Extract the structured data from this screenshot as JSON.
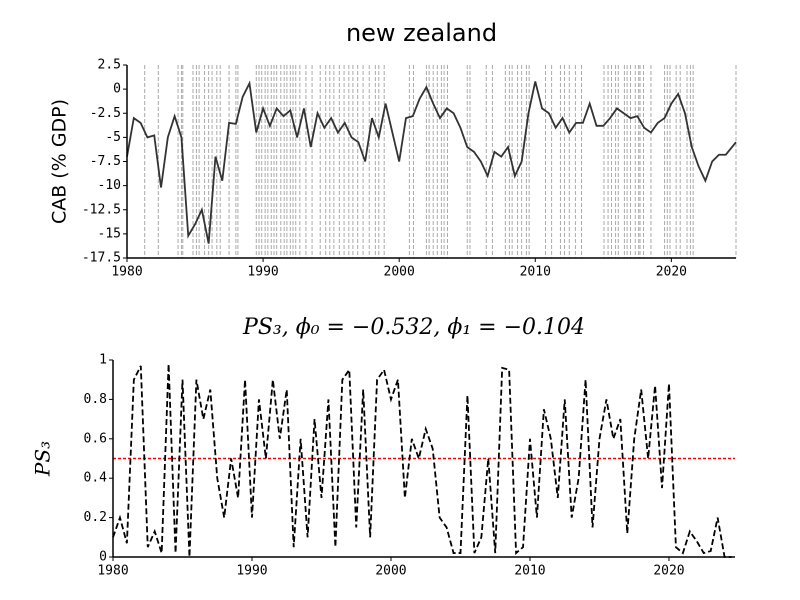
{
  "chart_data": [
    {
      "type": "line",
      "title": "new zealand",
      "ylabel": "CAB (% GDP)",
      "xlim": [
        1980,
        2024.75
      ],
      "ylim": [
        -17.5,
        2.5
      ],
      "xticks": [
        1980,
        1990,
        2000,
        2010,
        2020
      ],
      "yticks": [
        2.5,
        0,
        -2.5,
        -5,
        -7.5,
        -10,
        -12.5,
        -15,
        -17.5
      ],
      "vlines": [
        1981.3,
        1982.3,
        1983.75,
        1984.0,
        1984.1,
        1984.85,
        1985.1,
        1985.3,
        1985.7,
        1986.0,
        1986.25,
        1986.6,
        1986.85,
        1987.5,
        1988.0,
        1988.15,
        1989.5,
        1989.7,
        1989.9,
        1990.15,
        1990.35,
        1990.6,
        1990.8,
        1991.0,
        1991.3,
        1991.55,
        1991.75,
        1992.0,
        1992.2,
        1992.4,
        1992.7,
        1993.15,
        1993.6,
        1994.2,
        1994.6,
        1994.9,
        1995.2,
        1995.6,
        1995.95,
        1996.3,
        1996.6,
        1996.95,
        1997.35,
        1997.8,
        1998.25,
        1998.5,
        1998.9,
        2000.75,
        2001.05,
        2002.0,
        2002.2,
        2002.5,
        2002.8,
        2003.1,
        2003.3,
        2003.55,
        2005.0,
        2005.2,
        2006.4,
        2006.85,
        2007.8,
        2008.1,
        2008.3,
        2008.7,
        2009.0,
        2009.35,
        2009.55,
        2010.75,
        2011.2,
        2011.85,
        2012.15,
        2012.5,
        2012.95,
        2013.4,
        2015.05,
        2015.35,
        2015.6,
        2015.9,
        2016.1,
        2016.55,
        2016.75,
        2017.0,
        2017.35,
        2017.6,
        2017.7,
        2017.95,
        2018.5,
        2019.5,
        2019.7,
        2019.9,
        2020.35,
        2020.65,
        2021.15,
        2021.4,
        2021.6,
        2024.75
      ],
      "vline_color": "#aaaaaa",
      "series": [
        {
          "color": "#333333",
          "line_style": "solid",
          "x": [
            1980,
            1980.5,
            1981,
            1981.5,
            1982,
            1982.5,
            1983,
            1983.5,
            1984,
            1984.5,
            1985,
            1985.5,
            1986,
            1986.5,
            1987,
            1987.5,
            1988,
            1988.5,
            1989,
            1989.5,
            1990,
            1990.5,
            1991,
            1991.5,
            1992,
            1992.5,
            1993,
            1993.5,
            1994,
            1994.5,
            1995,
            1995.5,
            1996,
            1996.5,
            1997,
            1997.5,
            1998,
            1998.5,
            1999,
            1999.5,
            2000,
            2000.5,
            2001,
            2001.5,
            2002,
            2002.5,
            2003,
            2003.5,
            2004,
            2004.5,
            2005,
            2005.5,
            2006,
            2006.5,
            2007,
            2007.5,
            2008,
            2008.5,
            2009,
            2009.5,
            2010,
            2010.5,
            2011,
            2011.5,
            2012,
            2012.5,
            2013,
            2013.5,
            2014,
            2014.5,
            2015,
            2015.5,
            2016,
            2016.5,
            2017,
            2017.5,
            2018,
            2018.5,
            2019,
            2019.5,
            2020,
            2020.5,
            2021,
            2021.5,
            2022,
            2022.5,
            2023,
            2023.5,
            2024,
            2024.75
          ],
          "values": [
            -7,
            -3,
            -3.5,
            -5,
            -4.8,
            -10.2,
            -5,
            -2.8,
            -5,
            -15.2,
            -14,
            -12.5,
            -16,
            -7,
            -9.5,
            -3.5,
            -3.6,
            -0.8,
            0.6,
            -4.5,
            -2,
            -3.8,
            -2,
            -2.8,
            -2.2,
            -5,
            -2,
            -6,
            -2.5,
            -4,
            -3,
            -4.5,
            -3.5,
            -5,
            -5.5,
            -7.5,
            -3,
            -5,
            -1.5,
            -4.5,
            -7.5,
            -3,
            -2.8,
            -1,
            0.2,
            -1.5,
            -3,
            -2,
            -2.5,
            -4,
            -6,
            -6.5,
            -7.5,
            -9,
            -6.5,
            -7,
            -6,
            -9,
            -7.5,
            -2.5,
            0.8,
            -2,
            -2.5,
            -4,
            -3,
            -4.5,
            -3.5,
            -3.5,
            -1.5,
            -3.8,
            -3.8,
            -3,
            -2,
            -2.5,
            -3,
            -2.8,
            -4,
            -4.5,
            -3.5,
            -3,
            -1.5,
            -0.5,
            -2.5,
            -6,
            -8,
            -9.5,
            -7.5,
            -6.8,
            -6.8,
            -5.5
          ]
        }
      ]
    },
    {
      "type": "line",
      "title": "PS₃, ϕ₀ = −0.532, ϕ₁ = −0.104",
      "ylabel": "PS₃",
      "xlim": [
        1980,
        2024.75
      ],
      "ylim": [
        0,
        1
      ],
      "xticks": [
        1980,
        1990,
        2000,
        2010,
        2020
      ],
      "yticks": [
        0,
        0.2,
        0.4,
        0.6,
        0.8,
        1
      ],
      "hline": {
        "value": 0.5,
        "color": "#ff0000"
      },
      "series": [
        {
          "color": "#000000",
          "line_style": "dashed",
          "x": [
            1980,
            1980.5,
            1981,
            1981.5,
            1982,
            1982.5,
            1983,
            1983.5,
            1984,
            1984.5,
            1985,
            1985.5,
            1986,
            1986.5,
            1987,
            1987.5,
            1988,
            1988.5,
            1989,
            1989.5,
            1990,
            1990.5,
            1991,
            1991.5,
            1992,
            1992.5,
            1993,
            1993.5,
            1994,
            1994.5,
            1995,
            1995.5,
            1996,
            1996.5,
            1997,
            1997.5,
            1998,
            1998.5,
            1999,
            1999.5,
            2000,
            2000.5,
            2001,
            2001.5,
            2002,
            2002.5,
            2003,
            2003.5,
            2004,
            2004.5,
            2005,
            2005.5,
            2006,
            2006.5,
            2007,
            2007.5,
            2008,
            2008.5,
            2009,
            2009.5,
            2010,
            2010.5,
            2011,
            2011.5,
            2012,
            2012.5,
            2013,
            2013.5,
            2014,
            2014.5,
            2015,
            2015.5,
            2016,
            2016.5,
            2017,
            2017.5,
            2018,
            2018.5,
            2019,
            2019.5,
            2020,
            2020.5,
            2021,
            2021.5,
            2022,
            2022.5,
            2023,
            2023.5,
            2024,
            2024.5
          ],
          "values": [
            0.1,
            0.2,
            0.07,
            0.9,
            0.97,
            0.05,
            0.13,
            0.02,
            0.98,
            0.02,
            0.9,
            0,
            0.9,
            0.7,
            0.85,
            0.4,
            0.2,
            0.5,
            0.3,
            0.9,
            0.2,
            0.8,
            0.5,
            0.9,
            0.6,
            0.85,
            0.05,
            0.6,
            0.1,
            0.7,
            0.3,
            0.8,
            0.05,
            0.9,
            0.95,
            0.15,
            0.85,
            0.1,
            0.9,
            0.95,
            0.8,
            0.9,
            0.3,
            0.6,
            0.5,
            0.65,
            0.55,
            0.2,
            0.15,
            0.02,
            0.02,
            0.82,
            0.02,
            0.1,
            0.5,
            0.02,
            0.96,
            0.95,
            0.02,
            0.05,
            0.6,
            0.2,
            0.75,
            0.6,
            0.3,
            0.8,
            0.2,
            0.4,
            0.9,
            0.15,
            0.6,
            0.8,
            0.6,
            0.7,
            0.12,
            0.6,
            0.85,
            0.5,
            0.87,
            0.35,
            0.88,
            0.05,
            0.02,
            0.13,
            0.08,
            0.02,
            0.03,
            0.2,
            0,
            0
          ]
        }
      ]
    }
  ]
}
